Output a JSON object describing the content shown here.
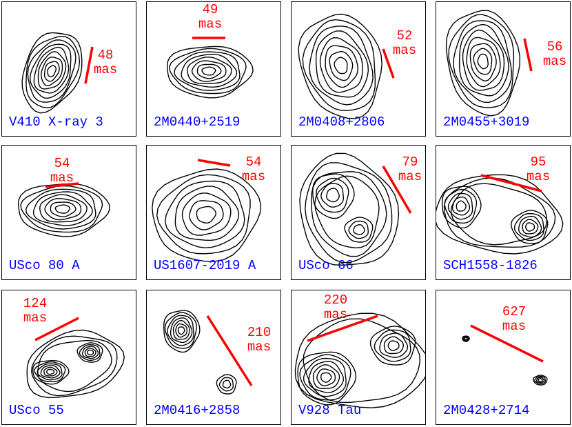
{
  "unit": "mas",
  "colors": {
    "scale_bar": "#ff0000",
    "target_name": "#0000ff",
    "contours": "#000000"
  },
  "panels": [
    {
      "name": "V410 X-ray 3",
      "separation": "48"
    },
    {
      "name": "2M0440+2519",
      "separation": "49"
    },
    {
      "name": "2M0408+2806",
      "separation": "52"
    },
    {
      "name": "2M0455+3019",
      "separation": "56"
    },
    {
      "name": "USco 80 A",
      "separation": "54"
    },
    {
      "name": "US1607-2019 A",
      "separation": "54"
    },
    {
      "name": "USco 66",
      "separation": "79"
    },
    {
      "name": "SCH1558-1826",
      "separation": "95"
    },
    {
      "name": "USco 55",
      "separation": "124"
    },
    {
      "name": "2M0416+2858",
      "separation": "210"
    },
    {
      "name": "V928 Tau",
      "separation": "220"
    },
    {
      "name": "2M0428+2714",
      "separation": "627"
    }
  ]
}
